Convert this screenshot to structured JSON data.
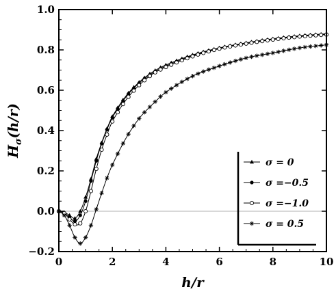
{
  "chart_data": {
    "type": "line",
    "title": "",
    "xlabel": "h/r",
    "ylabel": "Hσ(h/r)",
    "ylabel_parts": {
      "main": "H",
      "sub": "σ",
      "rest": "(h/r)"
    },
    "xlim": [
      0,
      10
    ],
    "ylim": [
      -0.2,
      1.0
    ],
    "xticks": [
      0,
      2,
      4,
      6,
      8,
      10
    ],
    "yticks": [
      -0.2,
      0.0,
      0.2,
      0.4,
      0.6,
      0.8,
      1.0
    ],
    "xtick_labels": [
      "0",
      "2",
      "4",
      "6",
      "8",
      "10"
    ],
    "ytick_labels": [
      "−0.2",
      "0.0",
      "0.2",
      "0.4",
      "0.6",
      "0.8",
      "1.0"
    ],
    "grid": false,
    "zero_reference_line": true,
    "legend_position": "lower-right",
    "series": [
      {
        "name": "σ =  0",
        "marker": "triangle-filled",
        "x": [
          0,
          0.2,
          0.4,
          0.6,
          0.8,
          1.0,
          1.2,
          1.4,
          1.6,
          1.8,
          2.0,
          2.5,
          3.0,
          3.5,
          4.0,
          5.0,
          6.0,
          7.0,
          8.0,
          9.0,
          10.0
        ],
        "y": [
          0.0,
          -0.005,
          -0.02,
          -0.035,
          0.0,
          0.07,
          0.16,
          0.26,
          0.34,
          0.41,
          0.47,
          0.57,
          0.64,
          0.69,
          0.725,
          0.775,
          0.81,
          0.835,
          0.855,
          0.87,
          0.88
        ]
      },
      {
        "name": "σ =−0.5",
        "marker": "circle-filled",
        "x": [
          0,
          0.2,
          0.4,
          0.6,
          0.8,
          1.0,
          1.2,
          1.4,
          1.6,
          1.8,
          2.0,
          2.5,
          3.0,
          3.5,
          4.0,
          5.0,
          6.0,
          7.0,
          8.0,
          9.0,
          10.0
        ],
        "y": [
          0.0,
          -0.008,
          -0.03,
          -0.05,
          -0.02,
          0.05,
          0.15,
          0.25,
          0.335,
          0.405,
          0.465,
          0.565,
          0.635,
          0.685,
          0.72,
          0.772,
          0.808,
          0.833,
          0.853,
          0.868,
          0.878
        ]
      },
      {
        "name": "σ =−1.0",
        "marker": "circle-open",
        "x": [
          0,
          0.2,
          0.4,
          0.6,
          0.8,
          1.0,
          1.2,
          1.4,
          1.6,
          1.8,
          2.0,
          2.5,
          3.0,
          3.5,
          4.0,
          5.0,
          6.0,
          7.0,
          8.0,
          9.0,
          10.0
        ],
        "y": [
          0.0,
          -0.01,
          -0.04,
          -0.065,
          -0.06,
          0.0,
          0.1,
          0.21,
          0.305,
          0.38,
          0.445,
          0.55,
          0.625,
          0.68,
          0.715,
          0.768,
          0.806,
          0.831,
          0.851,
          0.866,
          0.876
        ]
      },
      {
        "name": "σ =  0.5",
        "marker": "star",
        "x": [
          0,
          0.2,
          0.4,
          0.6,
          0.8,
          1.0,
          1.2,
          1.4,
          1.6,
          1.8,
          2.0,
          2.5,
          3.0,
          3.5,
          4.0,
          5.0,
          6.0,
          7.0,
          8.0,
          9.0,
          10.0
        ],
        "y": [
          0.0,
          -0.02,
          -0.07,
          -0.13,
          -0.16,
          -0.13,
          -0.07,
          0.01,
          0.09,
          0.165,
          0.23,
          0.36,
          0.46,
          0.53,
          0.59,
          0.67,
          0.72,
          0.76,
          0.785,
          0.81,
          0.825
        ]
      }
    ]
  }
}
